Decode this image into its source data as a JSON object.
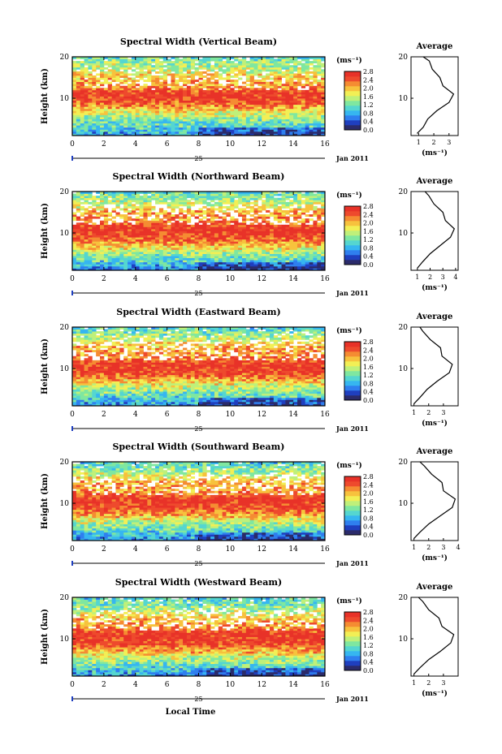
{
  "figure": {
    "xlabel": "Local Time",
    "date_label": "Jan 2011",
    "day_label": "25",
    "ylabel": "Height (km)",
    "unit_label": "(ms⁻¹)",
    "avg_title": "Average",
    "avg_xlabel": "(ms⁻¹)"
  },
  "colorbar": {
    "ticks": [
      "2.8",
      "2.4",
      "2.0",
      "1.6",
      "1.2",
      "0.8",
      "0.4",
      "0.0"
    ],
    "range": [
      0,
      3.0
    ],
    "colors": [
      "#2b2b6b",
      "#1f3fbf",
      "#2f7fef",
      "#36b6f0",
      "#55d6d0",
      "#7fe7a0",
      "#bff07a",
      "#f2ef55",
      "#f7c23d",
      "#f58c32",
      "#ee4a2d",
      "#e83228"
    ]
  },
  "chart_data": [
    {
      "type": "heatmap",
      "title": "Spectral Width (Vertical Beam)",
      "xlabel": "Local Time",
      "ylabel": "Height (km)",
      "x_range": [
        0,
        16
      ],
      "y_range": [
        1,
        20
      ],
      "x_ticks": [
        "0",
        "2",
        "4",
        "6",
        "8",
        "10",
        "12",
        "14",
        "16"
      ],
      "y_ticks": [
        "20",
        "10"
      ],
      "grid": false,
      "colorbar_unit": "ms-1",
      "profile": {
        "title": "Average",
        "xlabel": "(ms⁻¹)",
        "x_ticks": [
          "1",
          "2",
          "3"
        ],
        "x_range": [
          0.5,
          3.6
        ],
        "y_ticks": [
          "20",
          "10"
        ],
        "height": [
          1.5,
          3,
          5,
          7,
          9,
          11,
          13,
          15,
          17,
          19,
          20
        ],
        "width": [
          0.9,
          1.3,
          1.6,
          2.2,
          3.0,
          3.3,
          2.6,
          2.4,
          1.9,
          1.7,
          1.3
        ]
      }
    },
    {
      "type": "heatmap",
      "title": "Spectral Width (Northward Beam)",
      "xlabel": "Local Time",
      "ylabel": "Height (km)",
      "x_range": [
        0,
        16
      ],
      "y_range": [
        1,
        20
      ],
      "x_ticks": [
        "0",
        "2",
        "4",
        "6",
        "8",
        "10",
        "12",
        "14",
        "16"
      ],
      "y_ticks": [
        "20",
        "10"
      ],
      "grid": false,
      "colorbar_unit": "ms-1",
      "profile": {
        "title": "Average",
        "xlabel": "(ms⁻¹)",
        "x_ticks": [
          "1",
          "2",
          "3",
          "4"
        ],
        "x_range": [
          0.5,
          4.2
        ],
        "y_ticks": [
          "20",
          "10"
        ],
        "height": [
          1.5,
          3,
          5,
          7,
          9,
          11,
          13,
          15,
          17,
          19,
          20
        ],
        "width": [
          1.0,
          1.4,
          2.0,
          2.8,
          3.6,
          3.9,
          3.2,
          3.0,
          2.3,
          1.9,
          1.6
        ]
      }
    },
    {
      "type": "heatmap",
      "title": "Spectral Width (Eastward Beam)",
      "xlabel": "Local Time",
      "ylabel": "Height (km)",
      "x_range": [
        0,
        16
      ],
      "y_range": [
        1,
        20
      ],
      "x_ticks": [
        "0",
        "2",
        "4",
        "6",
        "8",
        "10",
        "12",
        "14",
        "16"
      ],
      "y_ticks": [
        "20",
        "10"
      ],
      "grid": false,
      "colorbar_unit": "ms-1",
      "profile": {
        "title": "Average",
        "xlabel": "(ms⁻¹)",
        "x_ticks": [
          "1",
          "2",
          "3"
        ],
        "x_range": [
          0.8,
          4.0
        ],
        "y_ticks": [
          "20",
          "10"
        ],
        "height": [
          1.5,
          3,
          5,
          7,
          9,
          11,
          13,
          15,
          17,
          19,
          20
        ],
        "width": [
          1.0,
          1.4,
          1.9,
          2.6,
          3.4,
          3.6,
          2.9,
          2.8,
          2.1,
          1.6,
          1.4
        ]
      }
    },
    {
      "type": "heatmap",
      "title": "Spectral Width (Southward Beam)",
      "xlabel": "Local Time",
      "ylabel": "Height (km)",
      "x_range": [
        0,
        16
      ],
      "y_range": [
        1,
        20
      ],
      "x_ticks": [
        "0",
        "2",
        "4",
        "6",
        "8",
        "10",
        "12",
        "14",
        "16"
      ],
      "y_ticks": [
        "20",
        "10"
      ],
      "grid": false,
      "colorbar_unit": "ms-1",
      "profile": {
        "title": "Average",
        "xlabel": "(ms⁻¹)",
        "x_ticks": [
          "1",
          "2",
          "3",
          "4"
        ],
        "x_range": [
          0.8,
          4.0
        ],
        "y_ticks": [
          "20",
          "10"
        ],
        "height": [
          1.5,
          3,
          5,
          7,
          9,
          11,
          13,
          15,
          17,
          19,
          20
        ],
        "width": [
          1.0,
          1.4,
          2.0,
          2.8,
          3.6,
          3.8,
          3.0,
          2.9,
          2.2,
          1.7,
          1.4
        ]
      }
    },
    {
      "type": "heatmap",
      "title": "Spectral Width (Westward Beam)",
      "xlabel": "Local Time",
      "ylabel": "Height (km)",
      "x_range": [
        0,
        16
      ],
      "y_range": [
        1,
        20
      ],
      "x_ticks": [
        "0",
        "2",
        "4",
        "6",
        "8",
        "10",
        "12",
        "14",
        "16"
      ],
      "y_ticks": [
        "20",
        "10"
      ],
      "grid": false,
      "colorbar_unit": "ms-1",
      "profile": {
        "title": "Average",
        "xlabel": "(ms⁻¹)",
        "x_ticks": [
          "1",
          "2",
          "3"
        ],
        "x_range": [
          0.8,
          4.0
        ],
        "y_ticks": [
          "20",
          "10"
        ],
        "height": [
          1.5,
          3,
          5,
          7,
          9,
          11,
          13,
          15,
          17,
          19,
          20
        ],
        "width": [
          1.0,
          1.4,
          2.0,
          2.8,
          3.5,
          3.7,
          2.9,
          2.7,
          2.0,
          1.6,
          1.3
        ]
      }
    }
  ]
}
